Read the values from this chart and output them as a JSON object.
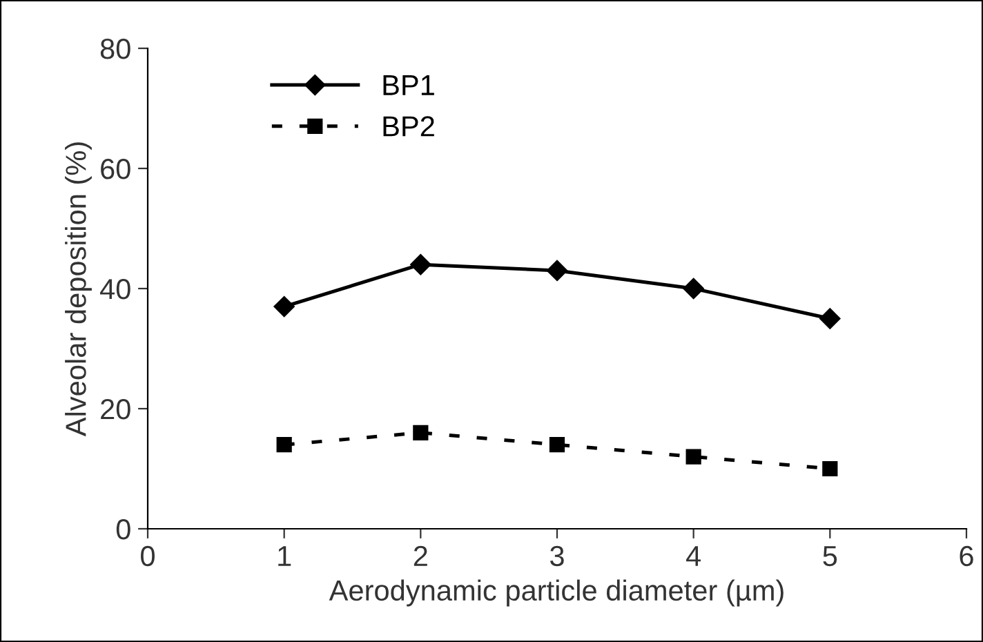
{
  "chart_data": {
    "type": "line",
    "xlabel": "Aerodynamic particle diameter (µm)",
    "ylabel": "Alveolar deposition (%)",
    "x": [
      1,
      2,
      3,
      4,
      5
    ],
    "series": [
      {
        "name": "BP1",
        "color": "#000000",
        "values": [
          37,
          44,
          43,
          40,
          35
        ],
        "marker": "diamond",
        "line_style": "solid"
      },
      {
        "name": "BP2",
        "color": "#000000",
        "values": [
          14,
          16,
          14,
          12,
          10
        ],
        "marker": "square",
        "line_style": "dashed"
      }
    ],
    "xlim": [
      0,
      6
    ],
    "xticks": [
      0,
      1,
      2,
      3,
      4,
      5,
      6
    ],
    "ylim": [
      0,
      80
    ],
    "yticks": [
      0,
      20,
      40,
      60,
      80
    ],
    "grid": false,
    "legend": "top left"
  }
}
